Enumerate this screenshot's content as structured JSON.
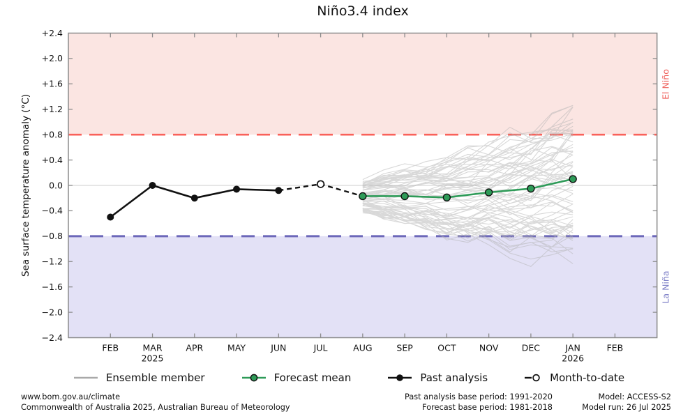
{
  "title": "Niño3.4 index",
  "y_axis_label": "Sea surface temperature anomaly (°C)",
  "region_labels": {
    "el_nino": "El Niño",
    "la_nina": "La Niña"
  },
  "legend": {
    "items": [
      {
        "key": "ensemble-member",
        "label": "Ensemble member"
      },
      {
        "key": "forecast-mean",
        "label": "Forecast mean"
      },
      {
        "key": "past-analysis",
        "label": "Past analysis"
      },
      {
        "key": "month-to-date",
        "label": "Month-to-date"
      }
    ]
  },
  "footer": {
    "left": {
      "line1": "www.bom.gov.au/climate",
      "line2": "Commonwealth of Australia 2025, Australian Bureau of Meteorology"
    },
    "center": {
      "line1": "Past analysis base period: 1991-2020",
      "line2": "Forecast base period: 1981-2018"
    },
    "right": {
      "line1": "Model: ACCESS-S2",
      "line2": "Model run: 26 Jul 2025"
    }
  },
  "colors": {
    "el_nino_band": "#fbe5e2",
    "la_nina_band": "#e3e1f6",
    "el_nino_line": "#f9615a",
    "la_nina_line": "#6c67b9",
    "el_nino_text": "#ef5f5a",
    "la_nina_text": "#8082c8",
    "forecast_green": "#2e9b58",
    "past_black": "#111111",
    "ensemble_gray": "#b3b3b3",
    "zero_line": "#cccccc",
    "frame_gray": "#8b8b8b"
  },
  "chart_data": {
    "type": "line",
    "title": "Niño3.4 index",
    "xlabel": "",
    "ylabel": "Sea surface temperature anomaly (°C)",
    "ylim": [
      -2.4,
      2.4
    ],
    "ytick_step": 0.4,
    "ytick_labels": [
      "+2.4",
      "+2.0",
      "+1.6",
      "+1.2",
      "+0.8",
      "+0.4",
      "0.0",
      "−0.4",
      "−0.8",
      "−1.2",
      "−1.6",
      "−2.0",
      "−2.4"
    ],
    "categories": [
      "FEB",
      "MAR",
      "APR",
      "MAY",
      "JUN",
      "JUL",
      "AUG",
      "SEP",
      "OCT",
      "NOV",
      "DEC",
      "JAN",
      "FEB"
    ],
    "year_labels": [
      {
        "category_index": 1,
        "text": "2025"
      },
      {
        "category_index": 11,
        "text": "2026"
      }
    ],
    "grid": "zero-line-only",
    "legend_position": "bottom",
    "thresholds": {
      "el_nino_value": 0.8,
      "la_nina_value": -0.8,
      "el_nino_label": "El Niño",
      "la_nina_label": "La Niña"
    },
    "series": [
      {
        "name": "Past analysis",
        "style": "solid-line-filled-markers",
        "color": "#111111",
        "category_indices": [
          0,
          1,
          2,
          3,
          4
        ],
        "values": [
          -0.5,
          0.0,
          -0.2,
          -0.06,
          -0.08
        ]
      },
      {
        "name": "Month-to-date",
        "style": "dashed-line-open-marker",
        "color": "#111111",
        "category_indices": [
          5
        ],
        "values": [
          0.02
        ],
        "dash_from_category_index": 4,
        "dash_to_category_index": 6
      },
      {
        "name": "Forecast mean",
        "style": "solid-line-filled-markers",
        "color": "#2e9b58",
        "category_indices": [
          6,
          7,
          8,
          9,
          10,
          11
        ],
        "values": [
          -0.17,
          -0.17,
          -0.19,
          -0.11,
          -0.05,
          0.1
        ]
      },
      {
        "name": "Ensemble member",
        "style": "thin-lines",
        "color": "#b3b3b3",
        "count": 72,
        "start_category_index": 6,
        "end_category_index": 11,
        "approx_start_value_range": [
          -0.45,
          0.2
        ],
        "approx_end_value_range": [
          -1.3,
          1.25
        ],
        "start_spread": 0.25,
        "end_spread": 1.12,
        "clamp_min": -1.33,
        "clamp_max": 1.26,
        "seed": 20250726
      }
    ]
  }
}
